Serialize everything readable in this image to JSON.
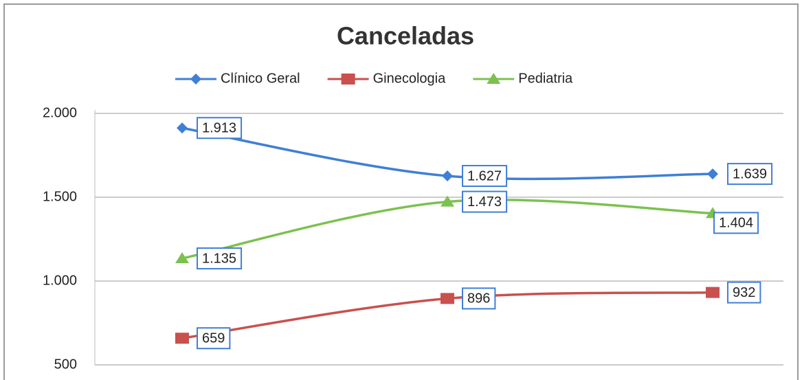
{
  "chart_data": {
    "type": "line",
    "title": "Canceladas",
    "categories": [
      null,
      null,
      null
    ],
    "series": [
      {
        "name": "Clínico Geral",
        "color": "#3f7fd6",
        "marker": "diamond",
        "values": [
          1913,
          1627,
          1639
        ],
        "value_labels": [
          "1.913",
          "1.627",
          "1.639"
        ]
      },
      {
        "name": "Ginecologia",
        "color": "#c9504d",
        "marker": "square",
        "values": [
          659,
          896,
          932
        ],
        "value_labels": [
          "659",
          "896",
          "932"
        ]
      },
      {
        "name": "Pediatria",
        "color": "#7cc14f",
        "marker": "triangle",
        "values": [
          1135,
          1473,
          1404
        ],
        "value_labels": [
          "1.135",
          "1.473",
          "1.404"
        ]
      }
    ],
    "ylim": [
      500,
      2000
    ],
    "yticks": [
      500,
      {
        "value": 1000,
        "label": "1.000"
      },
      {
        "value": 1500,
        "label": "1.500"
      },
      {
        "value": 2000,
        "label": "2.000"
      }
    ],
    "grid": true,
    "legend": "top"
  }
}
